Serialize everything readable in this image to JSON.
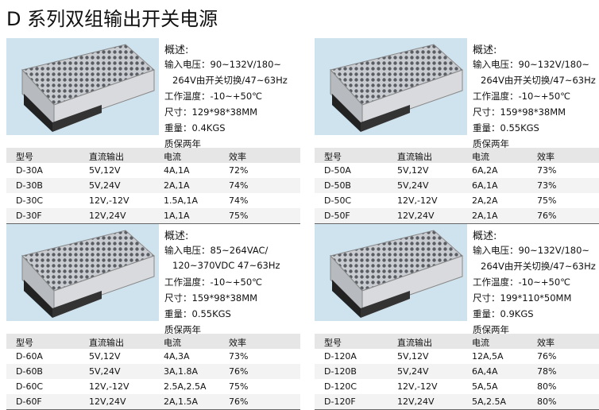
{
  "title": "D 系列双组输出开关电源",
  "products": [
    {
      "overview_label": "概述:",
      "specs": [
        "输入电压：90~132V/180~",
        "264V由开关切换/47~63Hz",
        "工作温度：-10~+50℃",
        "尺寸：129*98*38MM",
        "重量：0.4KGS",
        "质保两年"
      ],
      "table": {
        "header": [
          "型号",
          "直流输出",
          "电流",
          "效率"
        ],
        "rows": [
          [
            "D-30A",
            "5V,12V",
            "4A,1A",
            "72%"
          ],
          [
            "D-30B",
            "5V,24V",
            "2A,1A",
            "74%"
          ],
          [
            "D-30C",
            "12V,-12V",
            "1.5A,1A",
            "74%"
          ],
          [
            "D-30F",
            "12V,24V",
            "1A,1A",
            "75%"
          ]
        ]
      }
    },
    {
      "overview_label": "概述:",
      "specs": [
        "输入电压：90~132V/180~",
        "264V由开关切换/47~63Hz",
        "工作温度：-10~+50℃",
        "尺寸：159*98*38MM",
        "重量：0.55KGS",
        "质保两年"
      ],
      "table": {
        "header": [
          "型号",
          "直流输出",
          "电流",
          "效率"
        ],
        "rows": [
          [
            "D-50A",
            "5V,12V",
            "6A,2A",
            "73%"
          ],
          [
            "D-50B",
            "5V,24V",
            "6A,1A",
            "73%"
          ],
          [
            "D-50C",
            "12V,-12V",
            "2A,2A",
            "75%"
          ],
          [
            "D-50F",
            "12V,24V",
            "2A,1A",
            "76%"
          ]
        ]
      }
    },
    {
      "overview_label": "概述:",
      "specs": [
        "输入电压：85~264VAC/",
        "120~370VDC 47~63Hz",
        "工作温度：-10~+50℃",
        "尺寸：159*98*38MM",
        "重量：0.55KGS",
        "质保两年"
      ],
      "table": {
        "header": [
          "型号",
          "直流输出",
          "电流",
          "效率"
        ],
        "rows": [
          [
            "D-60A",
            "5V,12V",
            "4A,3A",
            "73%"
          ],
          [
            "D-60B",
            "5V,24V",
            "3A,1.8A",
            "76%"
          ],
          [
            "D-60C",
            "12V,-12V",
            "2.5A,2.5A",
            "75%"
          ],
          [
            "D-60F",
            "12V,24V",
            "2A,1.5A",
            "76%"
          ]
        ]
      }
    },
    {
      "overview_label": "概述:",
      "specs": [
        "输入电压：90~132V/180~",
        "264V由开关切换/47~63Hz",
        "工作温度：-10~+50℃",
        "尺寸：199*110*50MM",
        "重量：0.9KGS",
        "质保两年"
      ],
      "table": {
        "header": [
          "型号",
          "直流输出",
          "电流",
          "效率"
        ],
        "rows": [
          [
            "D-120A",
            "5V,12V",
            "12A,5A",
            "76%"
          ],
          [
            "D-120B",
            "5V,24V",
            "6A,4A",
            "78%"
          ],
          [
            "D-120C",
            "12V,-12V",
            "5A,5A",
            "80%"
          ],
          [
            "D-120F",
            "12V,24V",
            "5A,2.5A",
            "80%"
          ]
        ]
      }
    }
  ]
}
